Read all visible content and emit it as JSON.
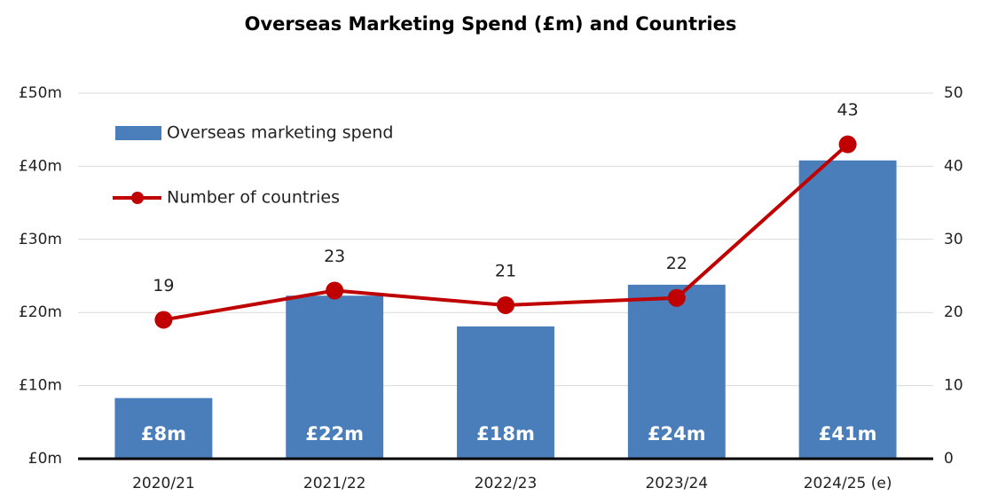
{
  "chart_data": {
    "type": "combo",
    "title": "Overseas Marketing Spend (£m) and Countries",
    "categories": [
      "2020/21",
      "2021/22",
      "2022/23",
      "2023/24",
      "2024/25 (e)"
    ],
    "series": [
      {
        "name": "Overseas marketing spend",
        "type": "bar",
        "color": "#4a7ebb",
        "values": [
          8.3,
          22.3,
          18.1,
          23.8,
          40.8
        ],
        "value_labels": [
          "£8m",
          "£22m",
          "£18m",
          "£24m",
          "£41m"
        ]
      },
      {
        "name": "Number of countries",
        "type": "line",
        "axis": "y2",
        "color": "#c00000",
        "values": [
          19,
          23,
          21,
          22,
          43
        ]
      }
    ],
    "ylim": [
      0,
      50
    ],
    "yticks": [
      {
        "value": 0,
        "label": "£0m"
      },
      {
        "value": 10,
        "label": "£10m"
      },
      {
        "value": 20,
        "label": "£20m"
      },
      {
        "value": 30,
        "label": "£30m"
      },
      {
        "value": 40,
        "label": "£40m"
      },
      {
        "value": 50,
        "label": "£50m"
      }
    ],
    "y2lim": [
      0,
      50
    ],
    "y2ticks": [
      0,
      10,
      20,
      30,
      40,
      50
    ],
    "grid": true,
    "legend": "top-left"
  }
}
